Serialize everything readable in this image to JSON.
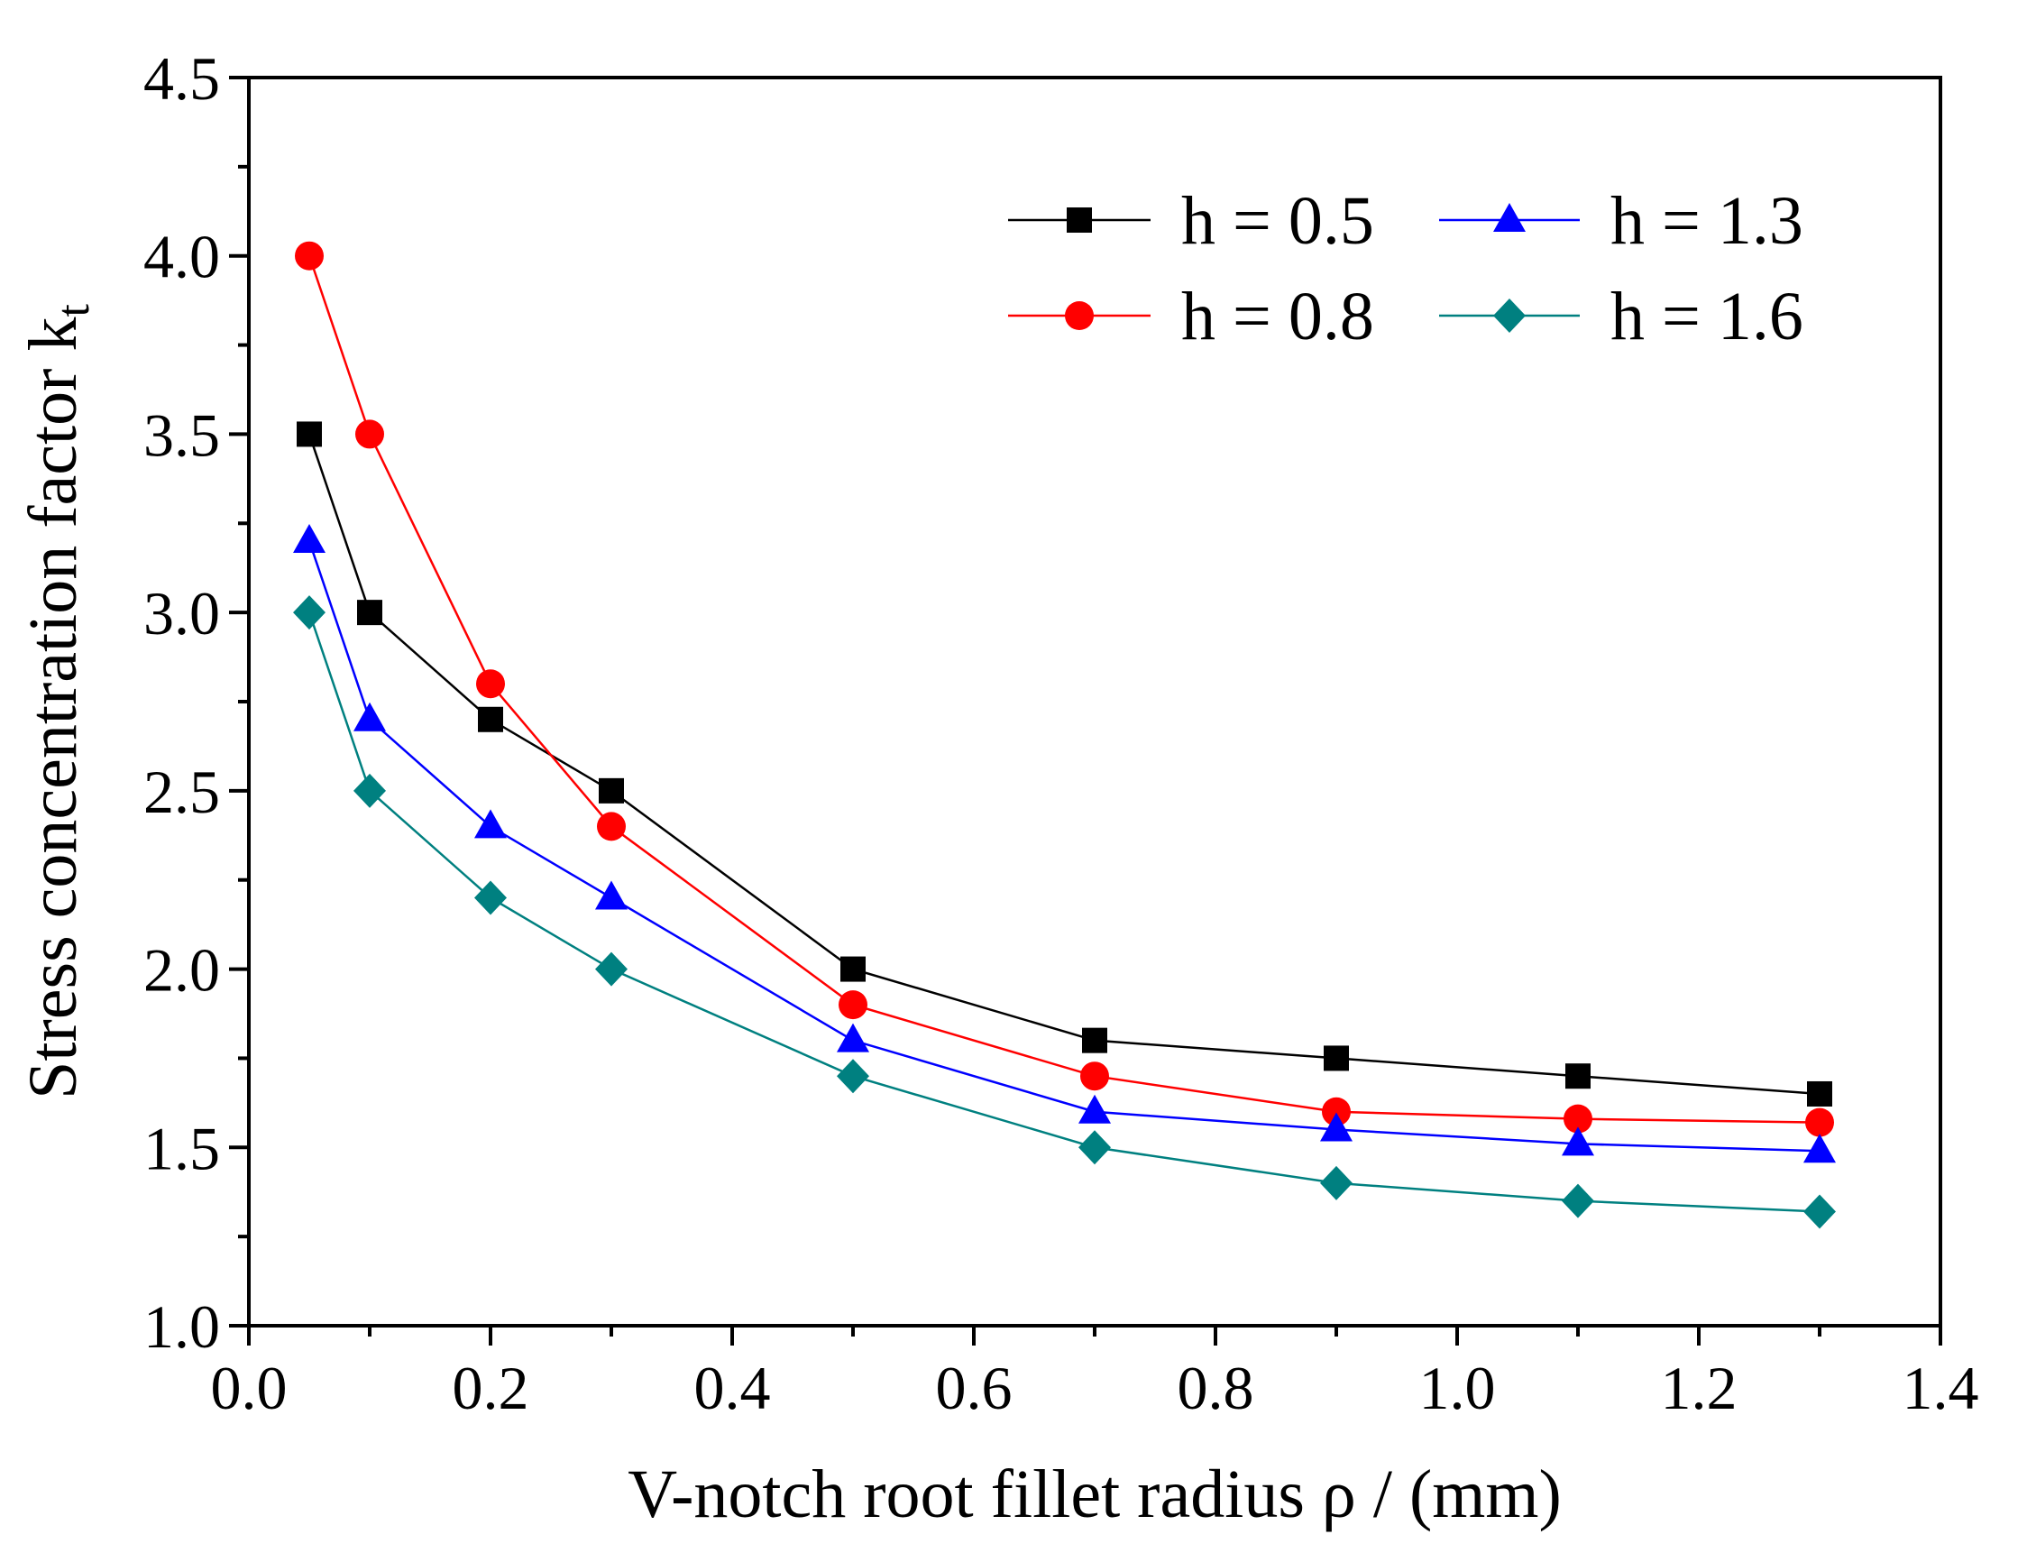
{
  "chart_data": {
    "type": "line",
    "title": "",
    "xlabel": "V-notch root fillet radius ρ / (mm)",
    "ylabel": "Stress concentration factor k",
    "ylabel_subscript": "t",
    "xlim": [
      0.0,
      1.4
    ],
    "ylim": [
      1.0,
      4.5
    ],
    "x_ticks": [
      0.0,
      0.2,
      0.4,
      0.6,
      0.8,
      1.0,
      1.2,
      1.4
    ],
    "x_tick_labels": [
      "0.0",
      "0.2",
      "0.4",
      "0.6",
      "0.8",
      "1.0",
      "1.2",
      "1.4"
    ],
    "y_ticks": [
      1.0,
      1.5,
      2.0,
      2.5,
      3.0,
      3.5,
      4.0,
      4.5
    ],
    "y_tick_labels": [
      "1.0",
      "1.5",
      "2.0",
      "2.5",
      "3.0",
      "3.5",
      "4.0",
      "4.5"
    ],
    "grid": false,
    "legend_position": "top-right",
    "x": [
      0.05,
      0.1,
      0.2,
      0.3,
      0.5,
      0.7,
      0.9,
      1.1,
      1.3
    ],
    "series": [
      {
        "name": "h = 0.5",
        "color": "#000000",
        "marker": "square",
        "values": [
          3.5,
          3.0,
          2.7,
          2.5,
          2.0,
          1.8,
          1.75,
          1.7,
          1.65
        ]
      },
      {
        "name": "h = 0.8",
        "color": "#ff0000",
        "marker": "circle",
        "values": [
          4.0,
          3.5,
          2.8,
          2.4,
          1.9,
          1.7,
          1.6,
          1.58,
          1.57
        ]
      },
      {
        "name": "h = 1.3",
        "color": "#0000ff",
        "marker": "triangle",
        "values": [
          3.2,
          2.7,
          2.4,
          2.2,
          1.8,
          1.6,
          1.55,
          1.51,
          1.49
        ]
      },
      {
        "name": "h = 1.6",
        "color": "#008080",
        "marker": "diamond",
        "values": [
          3.0,
          2.5,
          2.2,
          2.0,
          1.7,
          1.5,
          1.4,
          1.35,
          1.32
        ]
      }
    ]
  }
}
